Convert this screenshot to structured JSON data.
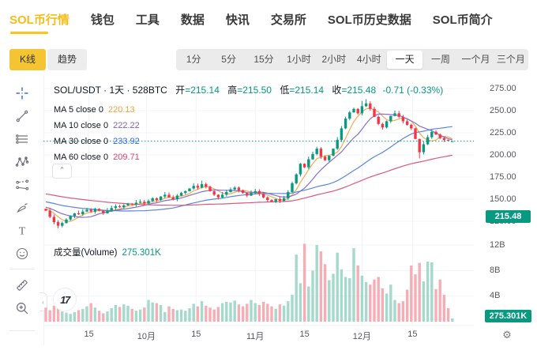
{
  "nav": {
    "items": [
      {
        "label": "SOL币行情",
        "active": true
      },
      {
        "label": "钱包",
        "active": false
      },
      {
        "label": "工具",
        "active": false
      },
      {
        "label": "数据",
        "active": false
      },
      {
        "label": "快讯",
        "active": false
      },
      {
        "label": "交易所",
        "active": false
      },
      {
        "label": "SOL币历史数据",
        "active": false
      },
      {
        "label": "SOL币简介",
        "active": false
      }
    ]
  },
  "controls": {
    "kline": "K线",
    "trend": "趋势"
  },
  "timeframes": {
    "items": [
      "1分",
      "5分",
      "15分",
      "1小时",
      "2小时",
      "4小时",
      "一天",
      "一周",
      "一个月",
      "三个月"
    ],
    "active": "一天"
  },
  "toolbar": {
    "icons": [
      "crosshair",
      "trend-line",
      "horizontal-lines",
      "xabcd-pattern",
      "projection",
      "brush",
      "text-tool",
      "emoji",
      "ruler",
      "zoom-in"
    ],
    "collapse_icon": "‹"
  },
  "legend": {
    "title": "SOL/USDT · 1天 · 528BTC",
    "ohlc": [
      {
        "label": "开",
        "value": "=215.14"
      },
      {
        "label": "高",
        "value": "=215.50"
      },
      {
        "label": "低",
        "value": "=215.14"
      },
      {
        "label": "收",
        "value": "=215.48"
      }
    ],
    "change": "-0.71 (-0.33%)",
    "ma_rows": [
      {
        "label": "MA 5 close 0",
        "value": "220.13"
      },
      {
        "label": "MA 10 close 0",
        "value": "222.22"
      },
      {
        "label": "MA 30 close 0",
        "value": "233.92"
      },
      {
        "label": "MA 60 close 0",
        "value": "209.71"
      }
    ],
    "collapse_icon": "⌃"
  },
  "volume_pane": {
    "label": "成交量(Volume)",
    "value": "275.301K"
  },
  "tv_logo_text": "17",
  "axis": {
    "price_badge": "215.48",
    "volume_badge": "275.301K",
    "gear_icon": "⚙"
  },
  "colors": {
    "accent_gold": "#f6bd16",
    "up": "#089981",
    "down": "#f23645",
    "vol_up": "#a5d9cb",
    "vol_down": "#f6aeb6",
    "ma5": "#f2a33a",
    "ma10": "#7b61c4",
    "ma30": "#4a79d9",
    "ma60": "#d6476e",
    "price_line": "#089981",
    "grid": "#f0f3fa",
    "badge": "#089981"
  },
  "chart_data": {
    "type": "candlestick",
    "title": "SOL/USDT · 1天 · 528BTC",
    "last_bar": {
      "open": 215.14,
      "high": 215.5,
      "low": 215.14,
      "close": 215.48,
      "change": -0.71,
      "change_pct": "-0.33%"
    },
    "ma_values": {
      "ma5": 220.13,
      "ma10": 222.22,
      "ma30": 233.92,
      "ma60": 209.71
    },
    "current_volume": "275.301K",
    "price_line": 215.48,
    "ylim": [
      125,
      275
    ],
    "vol_ylim_B": [
      0,
      12.5
    ],
    "price_ticks": [
      {
        "label": "275.00",
        "value": 275
      },
      {
        "label": "250.00",
        "value": 250
      },
      {
        "label": "225.00",
        "value": 225
      },
      {
        "label": "200.00",
        "value": 200
      },
      {
        "label": "175.00",
        "value": 175
      },
      {
        "label": "150.00",
        "value": 150
      },
      {
        "label": "125.00",
        "value": 125
      }
    ],
    "vol_ticks": [
      {
        "label": "12B",
        "value": 12
      },
      {
        "label": "8B",
        "value": 8
      },
      {
        "label": "4B",
        "value": 4
      }
    ],
    "time_ticks": [
      {
        "label": "15",
        "i": 10.5
      },
      {
        "label": "10月",
        "i": 24.5
      },
      {
        "label": "15",
        "i": 36.6
      },
      {
        "label": "11月",
        "i": 51
      },
      {
        "label": "15",
        "i": 63
      },
      {
        "label": "12月",
        "i": 77
      },
      {
        "label": "15",
        "i": 89.3
      }
    ],
    "closes": [
      137,
      130,
      124,
      120,
      123,
      127,
      131,
      134,
      133,
      136,
      138,
      136,
      139,
      137,
      134,
      137,
      140,
      142,
      141,
      143,
      145,
      144,
      146,
      147,
      145,
      148,
      151,
      149,
      153,
      155,
      152,
      150,
      154,
      157,
      159,
      162,
      165,
      163,
      167,
      164,
      159,
      155,
      152,
      155,
      158,
      161,
      163,
      160,
      157,
      154,
      157,
      159,
      156,
      152,
      149,
      147,
      150,
      148,
      151,
      158,
      168,
      178,
      190,
      186,
      195,
      201,
      207,
      198,
      194,
      199,
      207,
      217,
      230,
      241,
      248,
      252,
      247,
      255,
      258,
      252,
      243,
      235,
      231,
      238,
      244,
      247,
      243,
      238,
      234,
      230,
      218,
      203,
      212,
      220,
      226,
      223,
      219,
      217,
      216.19,
      215.48
    ],
    "volumes_B": [
      2.2,
      1.8,
      2.5,
      2.8,
      1.6,
      1.4,
      1.2,
      1.5,
      1.8,
      2.0,
      2.4,
      2.9,
      2.2,
      1.7,
      1.3,
      1.6,
      2.1,
      2.6,
      2.3,
      2.7,
      2.5,
      2.0,
      1.7,
      1.9,
      2.2,
      3.4,
      3.0,
      2.9,
      2.6,
      1.5,
      2.4,
      2.0,
      1.8,
      1.9,
      1.7,
      2.1,
      2.8,
      2.4,
      3.2,
      2.5,
      2.2,
      1.9,
      2.3,
      2.9,
      3.1,
      3.0,
      3.3,
      2.7,
      2.4,
      2.8,
      3.4,
      2.9,
      2.6,
      3.1,
      2.8,
      2.4,
      2.0,
      2.7,
      2.5,
      3.2,
      4.2,
      10.5,
      6.0,
      12.2,
      5.5,
      8.0,
      12.0,
      11.0,
      9.0,
      6.5,
      7.5,
      10.8,
      8.2,
      7.0,
      6.8,
      11.5,
      8.8,
      7.2,
      6.2,
      5.8,
      6.6,
      7.0,
      5.2,
      4.4,
      5.8,
      3.4,
      2.9,
      3.2,
      5.0,
      8.8,
      7.4,
      9.2,
      6.3,
      9.4,
      9.3,
      5.1,
      6.6,
      4.2,
      2.1,
      0.5
    ],
    "wick_overrides": {
      "3": {
        "low": 117
      },
      "38": {
        "high": 171
      },
      "77": {
        "high": 261
      },
      "78": {
        "high": 263
      },
      "91": {
        "low": 196
      }
    },
    "ma_windows": [
      5,
      10,
      30,
      60
    ],
    "ma_seed": {
      "start": 174,
      "end": 139,
      "count": 60
    }
  }
}
